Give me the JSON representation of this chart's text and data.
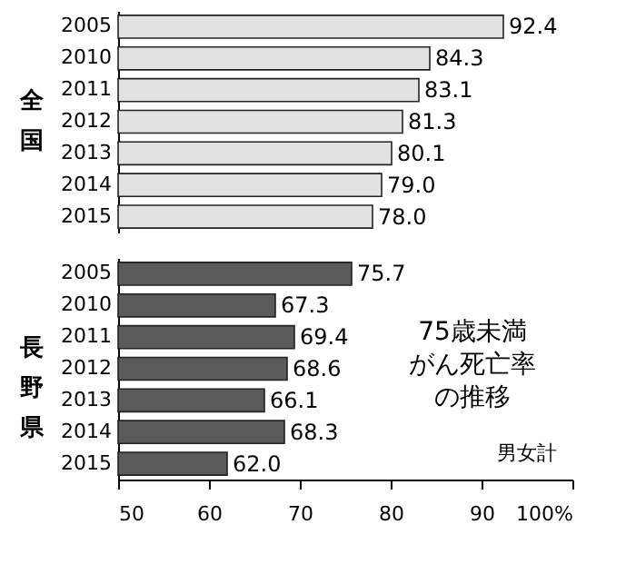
{
  "chart_data": [
    {
      "type": "bar",
      "orientation": "horizontal",
      "ylabel": "全国",
      "categories": [
        "2005",
        "2010",
        "2011",
        "2012",
        "2013",
        "2014",
        "2015"
      ],
      "values": [
        92.4,
        84.3,
        83.1,
        81.3,
        80.1,
        79.0,
        78.0
      ],
      "value_labels": [
        "92.4",
        "84.3",
        "83.1",
        "81.3",
        "80.1",
        "79.0",
        "78.0"
      ],
      "color": "#e2e2e2",
      "xlim": [
        50,
        100
      ],
      "tick_labels": "y"
    },
    {
      "type": "bar",
      "orientation": "horizontal",
      "ylabel": "長野県",
      "categories": [
        "2005",
        "2010",
        "2011",
        "2012",
        "2013",
        "2014",
        "2015"
      ],
      "values": [
        75.7,
        67.3,
        69.4,
        68.6,
        66.1,
        68.3,
        62.0
      ],
      "value_labels": [
        "75.7",
        "67.3",
        "69.4",
        "68.6",
        "66.1",
        "68.3",
        "62.0"
      ],
      "color": "#5a5a5a",
      "xlim": [
        50,
        100
      ],
      "xticks": [
        50,
        60,
        70,
        80,
        90,
        {
          "value": 100,
          "label": "100%"
        }
      ],
      "annotations": [
        "75歳未満",
        "がん死亡率",
        "の推移",
        "男女計"
      ]
    }
  ]
}
